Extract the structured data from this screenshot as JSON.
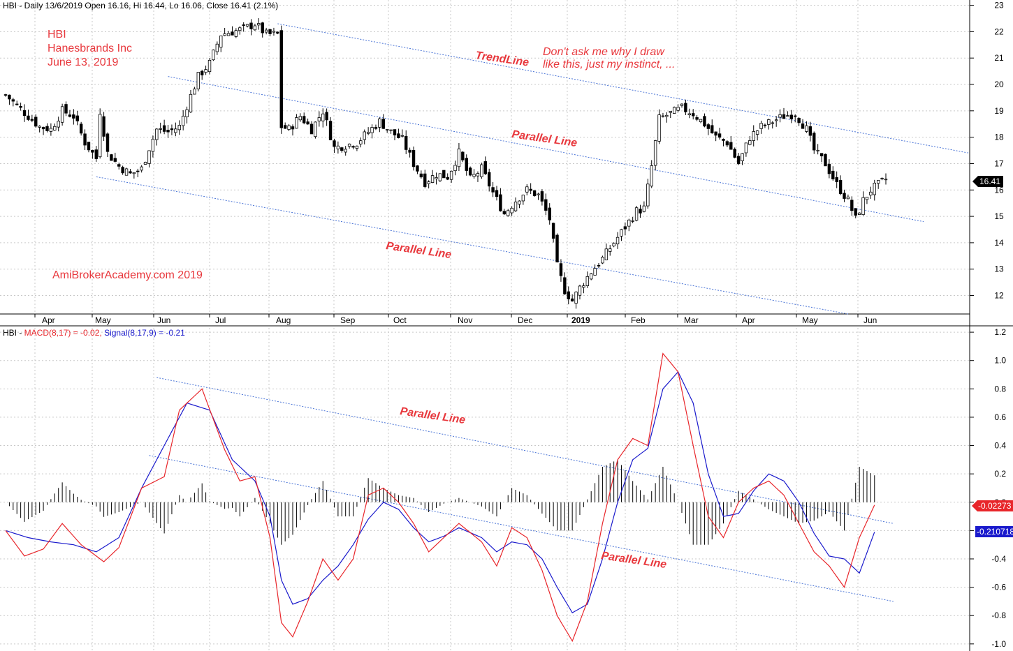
{
  "price_header": "HBI - Daily 13/6/2019 Open 16.16, Hi 16.44, Lo 16.06, Close 16.41 (2.1%)",
  "title_lines": [
    "HBI",
    "Hanesbrands Inc",
    "June 13, 2019"
  ],
  "watermark": "AmiBrokerAcademy.com  2019",
  "note_lines": [
    "Don't ask me why I draw",
    "like this, just my instinct, ..."
  ],
  "labels": {
    "trendline": "TrendLine",
    "parallel": "Parallel Line"
  },
  "macd_header": {
    "prefix": "HBI - ",
    "macd": "MACD(8,17) = -0.02,",
    "signal": "Signal(8,17,9) = -0.21"
  },
  "colors": {
    "macd": "#e8262b",
    "signal": "#1a1acc",
    "guide": "#4a74d6",
    "annotation": "#e8383d",
    "last_price_bg": "#000000",
    "macd_tag_bg": "#e8262b",
    "signal_tag_bg": "#1a1acc"
  },
  "tags": {
    "last_price": "16.41",
    "macd_value": "-0.02273",
    "signal_value": "-0.210718"
  },
  "chart_data": [
    {
      "type": "candlestick",
      "title": "HBI - Daily",
      "x_labels": [
        "Apr",
        "May",
        "Jun",
        "Jul",
        "Aug",
        "Sep",
        "Oct",
        "Nov",
        "Dec",
        "2019",
        "Feb",
        "Mar",
        "Apr",
        "May",
        "Jun"
      ],
      "y_ticks": [
        12,
        13,
        14,
        15,
        16,
        17,
        18,
        19,
        20,
        21,
        22,
        23
      ],
      "ylim": [
        11.3,
        23.2
      ],
      "close_path": [
        [
          0,
          19.6
        ],
        [
          3,
          19.2
        ],
        [
          6,
          18.8
        ],
        [
          9,
          18.4
        ],
        [
          12,
          18.3
        ],
        [
          15,
          19.0
        ],
        [
          18,
          18.8
        ],
        [
          21,
          17.8
        ],
        [
          24,
          17.2
        ],
        [
          25,
          19.0
        ],
        [
          27,
          17.4
        ],
        [
          30,
          16.9
        ],
        [
          33,
          16.6
        ],
        [
          36,
          16.8
        ],
        [
          38,
          17.6
        ],
        [
          40,
          18.3
        ],
        [
          43,
          18.2
        ],
        [
          46,
          18.4
        ],
        [
          48,
          19.2
        ],
        [
          51,
          20.3
        ],
        [
          54,
          20.8
        ],
        [
          57,
          21.9
        ],
        [
          60,
          22.0
        ],
        [
          63,
          22.1
        ],
        [
          66,
          22.3
        ],
        [
          69,
          21.9
        ],
        [
          72,
          21.9
        ],
        [
          73,
          18.4
        ],
        [
          75,
          18.3
        ],
        [
          78,
          18.8
        ],
        [
          81,
          18.3
        ],
        [
          84,
          19.0
        ],
        [
          87,
          17.6
        ],
        [
          90,
          17.7
        ],
        [
          93,
          17.8
        ],
        [
          96,
          18.2
        ],
        [
          99,
          18.6
        ],
        [
          102,
          18.2
        ],
        [
          105,
          17.9
        ],
        [
          108,
          17.0
        ],
        [
          111,
          16.3
        ],
        [
          114,
          16.6
        ],
        [
          117,
          16.5
        ],
        [
          120,
          17.4
        ],
        [
          123,
          16.4
        ],
        [
          126,
          16.8
        ],
        [
          129,
          15.9
        ],
        [
          132,
          15.1
        ],
        [
          135,
          15.6
        ],
        [
          138,
          16.0
        ],
        [
          141,
          15.8
        ],
        [
          144,
          14.9
        ],
        [
          146,
          13.1
        ],
        [
          148,
          12.2
        ],
        [
          150,
          11.8
        ],
        [
          152,
          12.3
        ],
        [
          155,
          12.9
        ],
        [
          158,
          13.4
        ],
        [
          161,
          14.0
        ],
        [
          164,
          14.6
        ],
        [
          167,
          15.2
        ],
        [
          169,
          15.3
        ],
        [
          171,
          16.9
        ],
        [
          173,
          18.7
        ],
        [
          176,
          18.9
        ],
        [
          179,
          19.1
        ],
        [
          182,
          18.9
        ],
        [
          185,
          18.5
        ],
        [
          188,
          18.0
        ],
        [
          191,
          17.8
        ],
        [
          194,
          17.0
        ],
        [
          197,
          18.0
        ],
        [
          200,
          18.4
        ],
        [
          203,
          18.6
        ],
        [
          206,
          18.8
        ],
        [
          209,
          18.9
        ],
        [
          212,
          18.3
        ],
        [
          214,
          17.5
        ],
        [
          217,
          17.0
        ],
        [
          220,
          16.2
        ],
        [
          223,
          15.6
        ],
        [
          225,
          14.9
        ],
        [
          227,
          15.6
        ],
        [
          229,
          16.0
        ],
        [
          231,
          16.2
        ],
        [
          233,
          16.4
        ]
      ],
      "trendline": {
        "label": "TrendLine",
        "from": [
          72,
          22.3
        ],
        "to": [
          255,
          17.4
        ]
      },
      "parallel_mid": {
        "label": "Parallel Line",
        "from": [
          43,
          20.3
        ],
        "to": [
          243,
          14.8
        ]
      },
      "parallel_low": {
        "label": "Parallel Line",
        "from": [
          24,
          16.5
        ],
        "to": [
          223,
          11.3
        ]
      },
      "last_close": 16.41
    },
    {
      "type": "line",
      "title": "MACD(8,17) / Signal(8,17,9)",
      "y_ticks": [
        -1.0,
        -0.8,
        -0.6,
        -0.4,
        -0.2,
        0.0,
        0.2,
        0.4,
        0.6,
        0.8,
        1.0,
        1.2
      ],
      "ylim": [
        -1.05,
        1.23
      ],
      "series": [
        {
          "name": "MACD(8,17)",
          "value": -0.02,
          "path": [
            [
              0,
              -0.2
            ],
            [
              5,
              -0.38
            ],
            [
              10,
              -0.33
            ],
            [
              15,
              -0.15
            ],
            [
              20,
              -0.3
            ],
            [
              26,
              -0.42
            ],
            [
              30,
              -0.32
            ],
            [
              36,
              0.1
            ],
            [
              42,
              0.18
            ],
            [
              46,
              0.65
            ],
            [
              52,
              0.8
            ],
            [
              58,
              0.37
            ],
            [
              62,
              0.15
            ],
            [
              66,
              0.18
            ],
            [
              70,
              -0.25
            ],
            [
              73,
              -0.85
            ],
            [
              76,
              -0.95
            ],
            [
              80,
              -0.7
            ],
            [
              84,
              -0.4
            ],
            [
              88,
              -0.55
            ],
            [
              92,
              -0.4
            ],
            [
              96,
              0.05
            ],
            [
              100,
              0.1
            ],
            [
              104,
              0.0
            ],
            [
              108,
              -0.15
            ],
            [
              112,
              -0.35
            ],
            [
              116,
              -0.25
            ],
            [
              120,
              -0.15
            ],
            [
              126,
              -0.28
            ],
            [
              130,
              -0.45
            ],
            [
              134,
              -0.18
            ],
            [
              138,
              -0.25
            ],
            [
              142,
              -0.48
            ],
            [
              146,
              -0.8
            ],
            [
              150,
              -0.98
            ],
            [
              154,
              -0.7
            ],
            [
              158,
              -0.15
            ],
            [
              162,
              0.3
            ],
            [
              166,
              0.45
            ],
            [
              170,
              0.4
            ],
            [
              174,
              1.05
            ],
            [
              178,
              0.92
            ],
            [
              182,
              0.4
            ],
            [
              186,
              -0.1
            ],
            [
              190,
              -0.25
            ],
            [
              194,
              0.0
            ],
            [
              198,
              0.1
            ],
            [
              202,
              0.15
            ],
            [
              206,
              0.05
            ],
            [
              210,
              -0.15
            ],
            [
              214,
              -0.35
            ],
            [
              218,
              -0.45
            ],
            [
              222,
              -0.6
            ],
            [
              226,
              -0.25
            ],
            [
              230,
              -0.02
            ]
          ]
        },
        {
          "name": "Signal(8,17,9)",
          "value": -0.21,
          "path": [
            [
              0,
              -0.2
            ],
            [
              6,
              -0.25
            ],
            [
              12,
              -0.28
            ],
            [
              18,
              -0.3
            ],
            [
              24,
              -0.35
            ],
            [
              30,
              -0.25
            ],
            [
              36,
              0.1
            ],
            [
              42,
              0.4
            ],
            [
              48,
              0.7
            ],
            [
              54,
              0.65
            ],
            [
              60,
              0.3
            ],
            [
              66,
              0.15
            ],
            [
              70,
              -0.1
            ],
            [
              73,
              -0.55
            ],
            [
              76,
              -0.72
            ],
            [
              80,
              -0.68
            ],
            [
              84,
              -0.55
            ],
            [
              88,
              -0.45
            ],
            [
              92,
              -0.3
            ],
            [
              96,
              -0.12
            ],
            [
              100,
              0.0
            ],
            [
              104,
              -0.05
            ],
            [
              108,
              -0.18
            ],
            [
              112,
              -0.28
            ],
            [
              116,
              -0.24
            ],
            [
              120,
              -0.18
            ],
            [
              126,
              -0.25
            ],
            [
              130,
              -0.35
            ],
            [
              134,
              -0.28
            ],
            [
              138,
              -0.3
            ],
            [
              142,
              -0.4
            ],
            [
              146,
              -0.6
            ],
            [
              150,
              -0.78
            ],
            [
              154,
              -0.72
            ],
            [
              158,
              -0.4
            ],
            [
              162,
              0.0
            ],
            [
              166,
              0.3
            ],
            [
              170,
              0.38
            ],
            [
              174,
              0.8
            ],
            [
              178,
              0.92
            ],
            [
              182,
              0.7
            ],
            [
              186,
              0.2
            ],
            [
              190,
              -0.1
            ],
            [
              194,
              -0.08
            ],
            [
              198,
              0.08
            ],
            [
              202,
              0.2
            ],
            [
              206,
              0.15
            ],
            [
              210,
              0.0
            ],
            [
              214,
              -0.22
            ],
            [
              218,
              -0.38
            ],
            [
              222,
              -0.4
            ],
            [
              226,
              -0.5
            ],
            [
              230,
              -0.21
            ]
          ]
        }
      ],
      "parallel_upper": {
        "label": "Parallel Line",
        "from": [
          40,
          0.88
        ],
        "to": [
          235,
          -0.15
        ]
      },
      "parallel_lower": {
        "label": "Parallel Line",
        "from": [
          38,
          0.33
        ],
        "to": [
          235,
          -0.7
        ]
      }
    }
  ]
}
